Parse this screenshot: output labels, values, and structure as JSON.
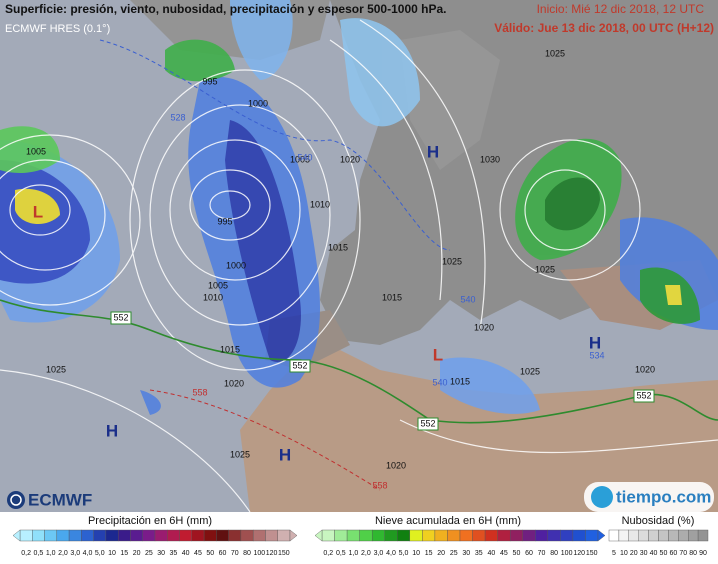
{
  "header": {
    "title": "Superficie: presión, viento, nubosidad, precipitación y espesor 500-1000 hPa.",
    "model": "ECMWF HRES (0.1°)",
    "start": "Inicio: Mié 12 dic 2018, 12 UTC",
    "valid": "Válido: Jue 13 dic 2018, 00 UTC (H+12)"
  },
  "map": {
    "isobar_labels": [
      "1005",
      "995",
      "1000",
      "1005",
      "1010",
      "1015",
      "1020",
      "1025",
      "1030",
      "1025",
      "995",
      "1000",
      "1005",
      "1010",
      "1015",
      "1020",
      "1025",
      "1025",
      "1020",
      "1015",
      "1020",
      "1015",
      "1025",
      "1020",
      "1025"
    ],
    "thickness_labels": [
      "552",
      "552",
      "552",
      "552",
      "540",
      "528",
      "558",
      "558",
      "540",
      "534",
      "540"
    ],
    "pressure_centers": [
      "H",
      "H",
      "H",
      "H",
      "L",
      "L"
    ]
  },
  "logos": {
    "left": "ECMWF",
    "right": "tiempo.com"
  },
  "legend": {
    "precipitation": {
      "title": "Precipitación en 6H (mm)",
      "ticks": [
        "0,2",
        "0,5",
        "1,0",
        "2,0",
        "3,0",
        "4,0",
        "5,0",
        "10",
        "15",
        "20",
        "25",
        "30",
        "35",
        "40",
        "45",
        "50",
        "60",
        "70",
        "80",
        "100",
        "120",
        "150"
      ]
    },
    "snow": {
      "title": "Nieve acumulada en 6H (mm)",
      "ticks": [
        "0,2",
        "0,5",
        "1,0",
        "2,0",
        "3,0",
        "4,0",
        "5,0",
        "10",
        "15",
        "20",
        "25",
        "30",
        "35",
        "40",
        "45",
        "50",
        "60",
        "70",
        "80",
        "100",
        "120",
        "150"
      ]
    },
    "clouds": {
      "title": "Nubosidad (%)",
      "ticks": [
        "5",
        "10",
        "20",
        "30",
        "40",
        "50",
        "60",
        "70",
        "80",
        "90"
      ]
    }
  }
}
